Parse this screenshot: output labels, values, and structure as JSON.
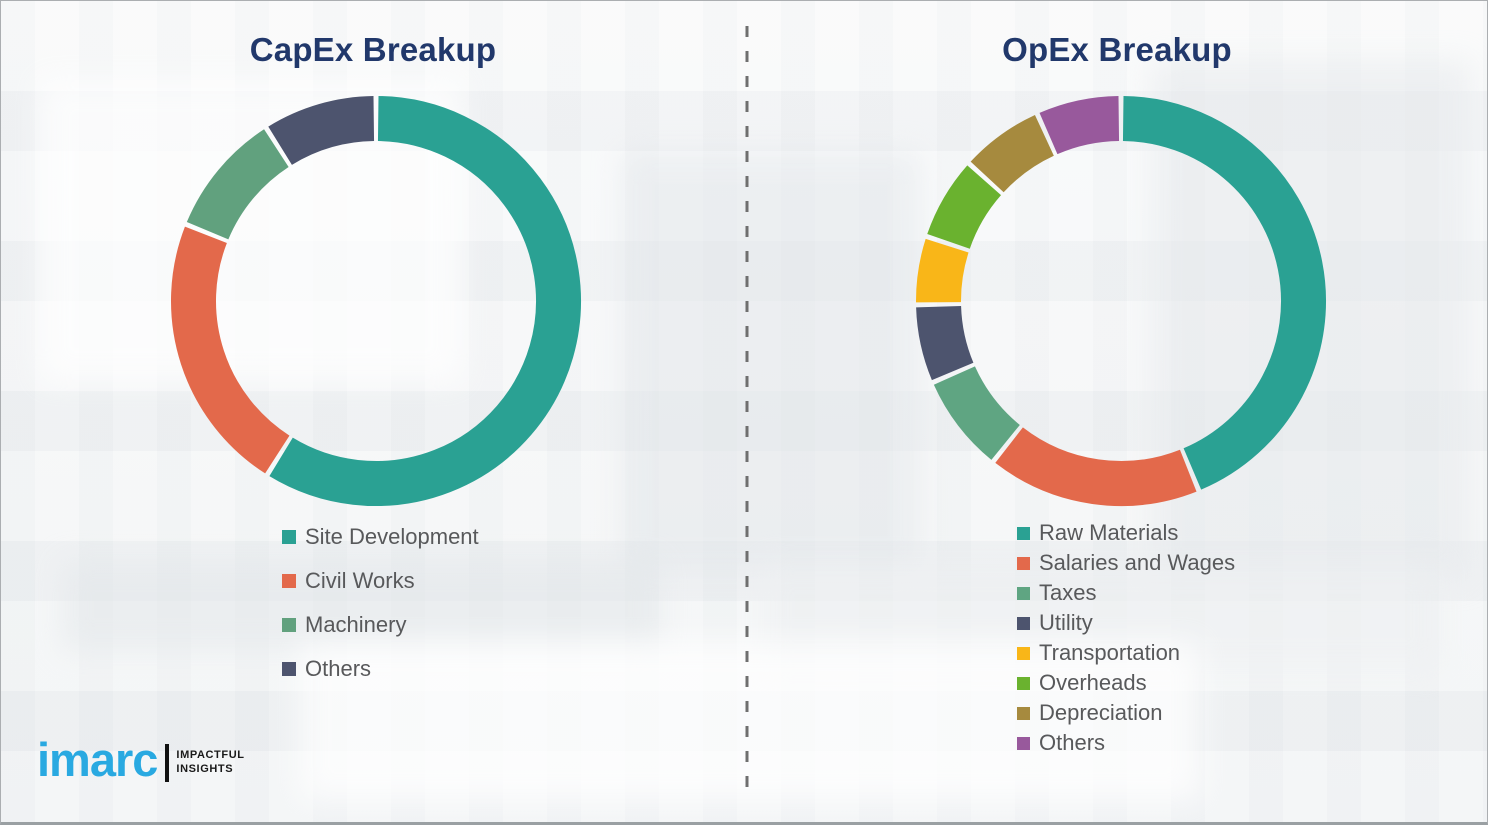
{
  "page": {
    "background_color": "#f2f4f5",
    "border_color": "#abaeb1",
    "divider": {
      "style": "dashed-vertical",
      "color": "#6f6f6f"
    }
  },
  "theme": {
    "title_color": "#21386b",
    "legend_text_color": "#58595b",
    "segment_gap_color": "#ffffff"
  },
  "chart_data": [
    {
      "type": "pie",
      "subtype": "donut",
      "title": "CapEx Breakup",
      "labels": [
        "Site Development",
        "Civil Works",
        "Machinery",
        "Others"
      ],
      "values": [
        58.9,
        22.2,
        9.9,
        9.0
      ],
      "colors": [
        "#2aa193",
        "#e3694b",
        "#61a17e",
        "#4d546e"
      ],
      "start_angle_deg": 0,
      "direction": "clockwise",
      "legend_position": "below-left",
      "data_labels_shown": false
    },
    {
      "type": "pie",
      "subtype": "donut",
      "title": "OpEx Breakup",
      "labels": [
        "Raw Materials",
        "Salaries and Wages",
        "Taxes",
        "Utility",
        "Transportation",
        "Overheads",
        "Depreciation",
        "Others"
      ],
      "values": [
        43.8,
        16.9,
        7.8,
        6.2,
        5.4,
        6.6,
        6.6,
        6.7
      ],
      "colors": [
        "#2aa193",
        "#e3694b",
        "#5fa582",
        "#4d546e",
        "#f9b618",
        "#6ab22f",
        "#a68a3e",
        "#98599c"
      ],
      "start_angle_deg": 0,
      "direction": "clockwise",
      "legend_position": "below-left",
      "data_labels_shown": false
    }
  ],
  "logo": {
    "brand": "imarc",
    "brand_color": "#29a9e1",
    "tagline_line1": "IMPACTFUL",
    "tagline_line2": "INSIGHTS"
  }
}
